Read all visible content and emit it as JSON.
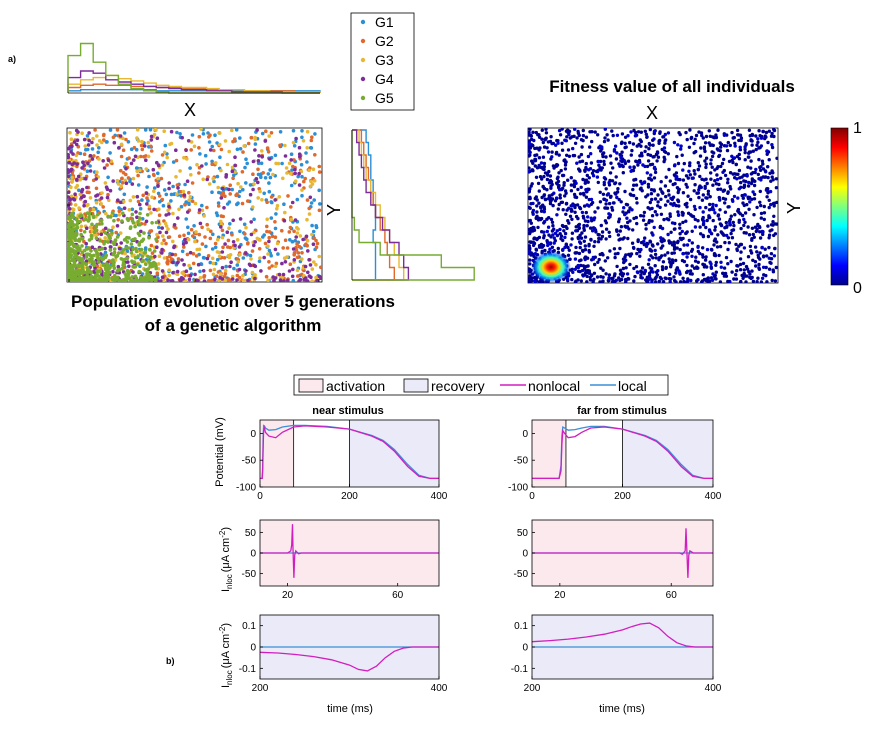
{
  "panel_labels": {
    "a": "a)",
    "b": "b)"
  },
  "colors": {
    "G1": "#2b8fd6",
    "G2": "#e0692b",
    "G3": "#e8b833",
    "G4": "#7c2d9a",
    "G5": "#77ac30",
    "nonlocal": "#d11fbf",
    "local": "#3a8fd6",
    "activation_fill": "#fbe9ee",
    "recovery_fill": "#eaeaf8"
  },
  "part_a": {
    "top_axis_label": "X",
    "side_axis_label": "Y",
    "legend": [
      "G1",
      "G2",
      "G3",
      "G4",
      "G5"
    ],
    "caption_line1": "Population evolution over 5 generations",
    "caption_line2": "of a genetic algorithm",
    "fitness_title": "Fitness value of all individuals",
    "fitness_xlabel": "X",
    "fitness_ylabel": "Y",
    "colorbar_max": "1",
    "colorbar_min": "0"
  },
  "part_b": {
    "legend": [
      "activation",
      "recovery",
      "nonlocal",
      "local"
    ],
    "col_titles": [
      "near stimulus",
      "far from stimulus"
    ],
    "ylabel_potential": "Potential (mV)",
    "ylabel_current": "I",
    "ylabel_current_sub": "nloc",
    "ylabel_current_unit": "(μA cm",
    "ylabel_current_exp": "-2",
    "xlabel_time": "time (ms)"
  },
  "chart_data": [
    {
      "type": "scatter",
      "title": "",
      "xlabel": "X",
      "ylabel": "Y",
      "series": [
        {
          "name": "G1",
          "description_values": "uniformly spread over full range"
        },
        {
          "name": "G2",
          "description_values": "concentrated toward lower-left, broad"
        },
        {
          "name": "G3",
          "description_values": "concentrated toward lower-left"
        },
        {
          "name": "G4",
          "description_values": "concentrated in lower-left region"
        },
        {
          "name": "G5",
          "description_values": "tightly clustered at bottom-left"
        }
      ],
      "x_histograms": {
        "G1": [
          2,
          3,
          3,
          3,
          3,
          3,
          3,
          2,
          2,
          2,
          2,
          2,
          2,
          2,
          2,
          2,
          2,
          2,
          2,
          2
        ],
        "G2": [
          5,
          7,
          8,
          7,
          7,
          6,
          6,
          5,
          5,
          4,
          4,
          3,
          3,
          3,
          2,
          2,
          2,
          2,
          1,
          1
        ],
        "G3": [
          8,
          12,
          14,
          16,
          13,
          11,
          9,
          7,
          6,
          5,
          5,
          4,
          3,
          3,
          2,
          2,
          1,
          1,
          1,
          1
        ],
        "G4": [
          14,
          20,
          18,
          12,
          10,
          8,
          6,
          5,
          4,
          3,
          3,
          2,
          2,
          1,
          1,
          1,
          1,
          0,
          0,
          0
        ],
        "G5": [
          34,
          45,
          28,
          16,
          8,
          4,
          2,
          1,
          0,
          0,
          0,
          0,
          0,
          0,
          0,
          0,
          0,
          0,
          0,
          0
        ]
      },
      "y_histograms": {
        "G1": [
          6,
          7,
          8,
          8,
          9,
          9,
          10,
          10,
          9,
          10,
          10,
          10
        ],
        "G2": [
          4,
          5,
          6,
          7,
          8,
          9,
          10,
          12,
          14,
          15,
          16,
          18
        ],
        "G3": [
          3,
          4,
          5,
          6,
          8,
          10,
          12,
          14,
          16,
          18,
          20,
          22
        ],
        "G4": [
          2,
          3,
          4,
          5,
          6,
          8,
          10,
          13,
          16,
          20,
          22,
          24
        ],
        "G5": [
          0,
          0,
          0,
          0,
          0,
          0,
          0,
          1,
          3,
          12,
          38,
          52
        ]
      }
    },
    {
      "type": "scatter",
      "title": "Fitness value of all individuals",
      "xlabel": "X",
      "ylabel": "Y",
      "colorbar": {
        "min": 0,
        "max": 1
      },
      "description": "dense high-fitness cluster at bottom-left, mostly 0 elsewhere"
    },
    {
      "type": "line",
      "title": "near stimulus",
      "xlabel": "",
      "ylabel": "Potential (mV)",
      "xlim": [
        0,
        400
      ],
      "ylim": [
        -100,
        25
      ],
      "xticks": [
        0,
        200,
        400
      ],
      "yticks": [
        -100,
        -50,
        0
      ],
      "activation_span": [
        0,
        75
      ],
      "recovery_span": [
        200,
        400
      ],
      "series": [
        {
          "name": "nonlocal",
          "x": [
            0,
            5,
            6,
            7,
            8,
            10,
            12,
            20,
            35,
            50,
            75,
            100,
            150,
            200,
            250,
            275,
            300,
            330,
            355,
            380,
            400
          ],
          "y": [
            -84,
            -84,
            -70,
            -30,
            5,
            10,
            2,
            -5,
            -8,
            2,
            12,
            14,
            12,
            8,
            -5,
            -15,
            -33,
            -62,
            -80,
            -84,
            -84
          ]
        },
        {
          "name": "local",
          "x": [
            0,
            5,
            6,
            7,
            8,
            10,
            12,
            20,
            35,
            50,
            75,
            100,
            150,
            200,
            250,
            275,
            300,
            330,
            355,
            380,
            400
          ],
          "y": [
            -84,
            -84,
            -60,
            -10,
            15,
            14,
            10,
            6,
            7,
            12,
            15,
            15,
            13,
            8,
            -4,
            -13,
            -30,
            -58,
            -78,
            -84,
            -84
          ]
        }
      ]
    },
    {
      "type": "line",
      "title": "far from stimulus",
      "xlabel": "",
      "ylabel": "",
      "xlim": [
        0,
        400
      ],
      "ylim": [
        -100,
        25
      ],
      "xticks": [
        0,
        200,
        400
      ],
      "yticks": [
        -100,
        -50,
        0
      ],
      "activation_span": [
        0,
        75
      ],
      "recovery_span": [
        200,
        400
      ],
      "series": [
        {
          "name": "nonlocal",
          "x": [
            0,
            60,
            64,
            66,
            68,
            72,
            80,
            95,
            110,
            130,
            160,
            200,
            250,
            275,
            300,
            330,
            355,
            380,
            400
          ],
          "y": [
            -84,
            -84,
            -70,
            -20,
            5,
            0,
            -8,
            -6,
            2,
            10,
            12,
            8,
            -5,
            -15,
            -33,
            -62,
            -80,
            -84,
            -84
          ]
        },
        {
          "name": "local",
          "x": [
            0,
            60,
            64,
            66,
            68,
            72,
            80,
            95,
            110,
            130,
            160,
            200,
            250,
            275,
            300,
            330,
            355,
            380,
            400
          ],
          "y": [
            -84,
            -84,
            -60,
            -5,
            12,
            10,
            6,
            7,
            10,
            13,
            13,
            8,
            -4,
            -13,
            -30,
            -58,
            -78,
            -84,
            -84
          ]
        }
      ]
    },
    {
      "type": "line",
      "title": "",
      "xlabel": "",
      "ylabel": "I nloc (μA cm-2)",
      "xlim": [
        10,
        75
      ],
      "ylim": [
        -80,
        80
      ],
      "xticks": [
        20,
        60
      ],
      "yticks": [
        -50,
        0,
        50
      ],
      "series": [
        {
          "name": "nonlocal",
          "x": [
            10,
            20,
            21.2,
            21.5,
            21.8,
            22.0,
            22.3,
            22.6,
            23,
            24,
            25,
            75
          ],
          "y": [
            0,
            0,
            5,
            20,
            70,
            10,
            -60,
            -5,
            5,
            -2,
            0,
            0
          ]
        },
        {
          "name": "local",
          "x": [
            10,
            75
          ],
          "y": [
            0,
            0
          ]
        }
      ]
    },
    {
      "type": "line",
      "title": "",
      "xlabel": "",
      "ylabel": "",
      "xlim": [
        10,
        75
      ],
      "ylim": [
        -80,
        80
      ],
      "xticks": [
        20,
        60
      ],
      "yticks": [
        -50,
        0,
        50
      ],
      "series": [
        {
          "name": "nonlocal",
          "x": [
            10,
            63,
            64,
            65,
            65.3,
            65.6,
            66,
            66.3,
            66.7,
            68,
            75
          ],
          "y": [
            0,
            0,
            -3,
            5,
            60,
            10,
            -60,
            -5,
            5,
            0,
            0
          ]
        },
        {
          "name": "local",
          "x": [
            10,
            75
          ],
          "y": [
            0,
            0
          ]
        }
      ]
    },
    {
      "type": "line",
      "title": "",
      "xlabel": "time (ms)",
      "ylabel": "I nloc (μA cm-2)",
      "xlim": [
        200,
        400
      ],
      "ylim": [
        -0.15,
        0.15
      ],
      "xticks": [
        200,
        400
      ],
      "yticks": [
        -0.1,
        0,
        0.1
      ],
      "series": [
        {
          "name": "nonlocal",
          "x": [
            200,
            220,
            240,
            260,
            280,
            300,
            310,
            320,
            330,
            340,
            350,
            360,
            370,
            380,
            390,
            400
          ],
          "y": [
            -0.025,
            -0.028,
            -0.035,
            -0.045,
            -0.06,
            -0.085,
            -0.105,
            -0.112,
            -0.09,
            -0.05,
            -0.02,
            -0.005,
            0,
            0,
            0,
            0
          ]
        },
        {
          "name": "local",
          "x": [
            200,
            400
          ],
          "y": [
            0,
            0
          ]
        }
      ]
    },
    {
      "type": "line",
      "title": "",
      "xlabel": "time (ms)",
      "ylabel": "",
      "xlim": [
        200,
        400
      ],
      "ylim": [
        -0.15,
        0.15
      ],
      "xticks": [
        200,
        400
      ],
      "yticks": [
        -0.1,
        0,
        0.1
      ],
      "series": [
        {
          "name": "nonlocal",
          "x": [
            200,
            220,
            240,
            260,
            280,
            300,
            310,
            320,
            330,
            340,
            350,
            360,
            370,
            380,
            390,
            400
          ],
          "y": [
            0.025,
            0.03,
            0.037,
            0.047,
            0.06,
            0.08,
            0.095,
            0.108,
            0.112,
            0.09,
            0.05,
            0.02,
            0.005,
            0,
            0,
            0
          ]
        },
        {
          "name": "local",
          "x": [
            200,
            400
          ],
          "y": [
            0,
            0
          ]
        }
      ]
    }
  ]
}
